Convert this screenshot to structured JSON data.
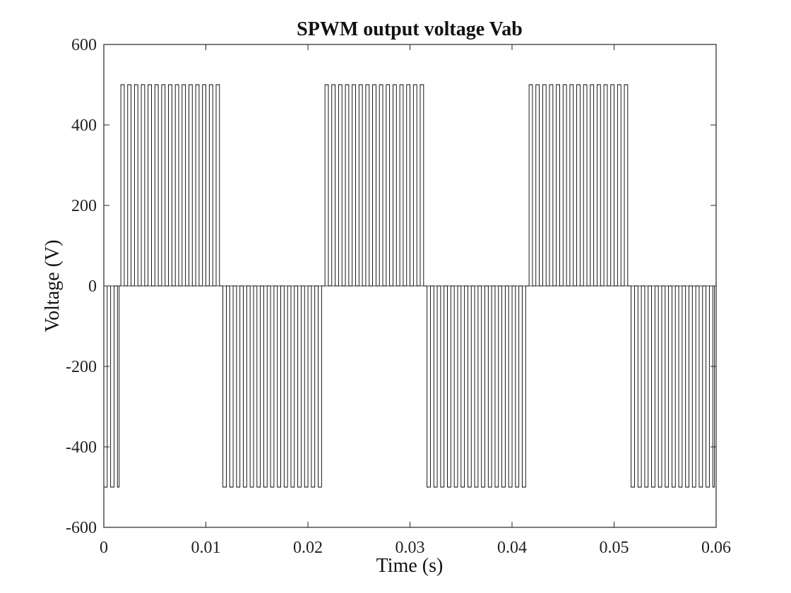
{
  "chart_data": {
    "type": "line",
    "title": "SPWM output voltage Vab",
    "xlabel": "Time (s)",
    "ylabel": "Voltage (V)",
    "xlim": [
      0,
      0.06
    ],
    "ylim": [
      -600,
      600
    ],
    "xticks": [
      0,
      0.01,
      0.02,
      0.03,
      0.04,
      0.05,
      0.06
    ],
    "xtick_labels": [
      "0",
      "0.01",
      "0.02",
      "0.03",
      "0.04",
      "0.05",
      "0.06"
    ],
    "yticks": [
      -600,
      -400,
      -200,
      0,
      200,
      400,
      600
    ],
    "ytick_labels": [
      "-600",
      "-400",
      "-200",
      "0",
      "200",
      "400",
      "600"
    ],
    "grid": false,
    "series": [
      {
        "color": "#000000",
        "waveform": "sine-pwm-bipolar-pulses",
        "amplitude": 500,
        "fundamental_hz": 50,
        "phase_offset_s": 0.00167,
        "switching_pulses_per_ms": 1.5,
        "values_description_segments": [
          {
            "t_start": 0,
            "t_end": 0.00167,
            "level": -500
          },
          {
            "t_start": 0.00167,
            "t_end": 0.01167,
            "level": 500
          },
          {
            "t_start": 0.01167,
            "t_end": 0.02167,
            "level": -500
          },
          {
            "t_start": 0.02167,
            "t_end": 0.03167,
            "level": 500
          },
          {
            "t_start": 0.03167,
            "t_end": 0.04167,
            "level": -500
          },
          {
            "t_start": 0.04167,
            "t_end": 0.05167,
            "level": 500
          },
          {
            "t_start": 0.05167,
            "t_end": 0.06,
            "level": -500
          }
        ]
      }
    ]
  }
}
